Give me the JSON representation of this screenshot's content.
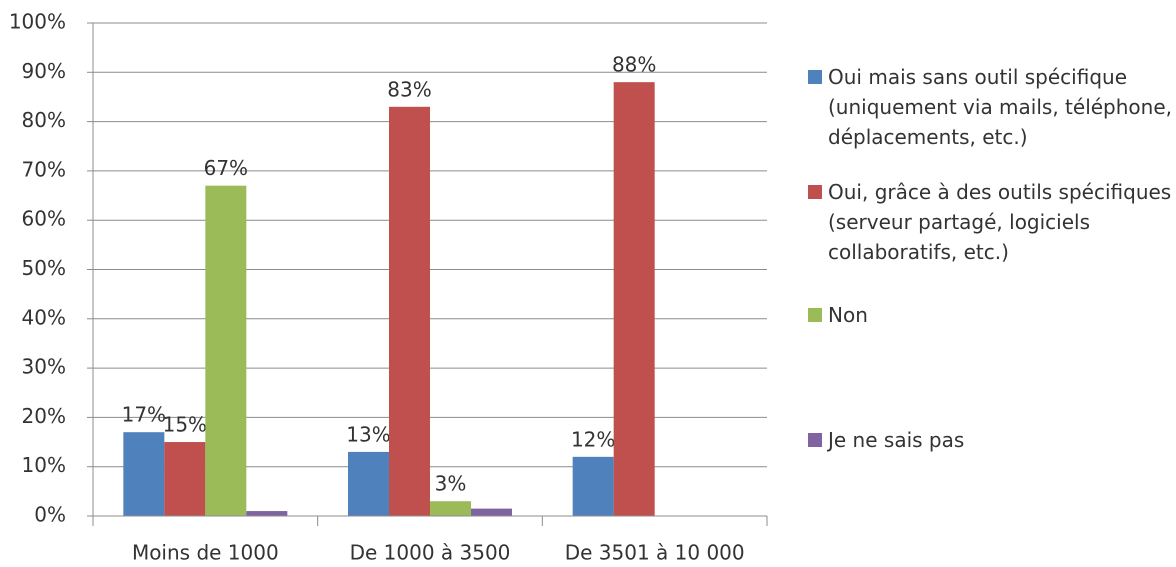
{
  "chart_data": {
    "type": "bar",
    "categories": [
      "Moins de 1000",
      "De 1000 à 3500",
      "De 3501 à 10 000"
    ],
    "series": [
      {
        "name": "Oui mais sans outil spécifique (uniquement via mails, téléphone, déplacements, etc.)",
        "color": "#4f81bd",
        "values": [
          17,
          13,
          12
        ],
        "value_labels": [
          "17%",
          "13%",
          "12%"
        ]
      },
      {
        "name": "Oui, grâce à des outils spécifiques (serveur partagé, logiciels collaboratifs, etc.)",
        "color": "#c0504d",
        "values": [
          15,
          83,
          88
        ],
        "value_labels": [
          "15%",
          "83%",
          "88%"
        ]
      },
      {
        "name": "Non",
        "color": "#9bbb59",
        "values": [
          67,
          3,
          0
        ],
        "value_labels": [
          "67%",
          "3%",
          null
        ]
      },
      {
        "name": "Je ne sais pas",
        "color": "#8064a2",
        "values": [
          1,
          1.5,
          0
        ]
      }
    ],
    "ylim": [
      0,
      100
    ],
    "yticks": [
      {
        "value": 0,
        "label": "0%"
      },
      {
        "value": 10,
        "label": "10%"
      },
      {
        "value": 20,
        "label": "20%"
      },
      {
        "value": 30,
        "label": "30%"
      },
      {
        "value": 40,
        "label": "40%"
      },
      {
        "value": 50,
        "label": "50%"
      },
      {
        "value": 60,
        "label": "60%"
      },
      {
        "value": 70,
        "label": "70%"
      },
      {
        "value": 80,
        "label": "80%"
      },
      {
        "value": 90,
        "label": "90%"
      },
      {
        "value": 100,
        "label": "100%"
      }
    ],
    "grid": true,
    "legend": "right"
  }
}
